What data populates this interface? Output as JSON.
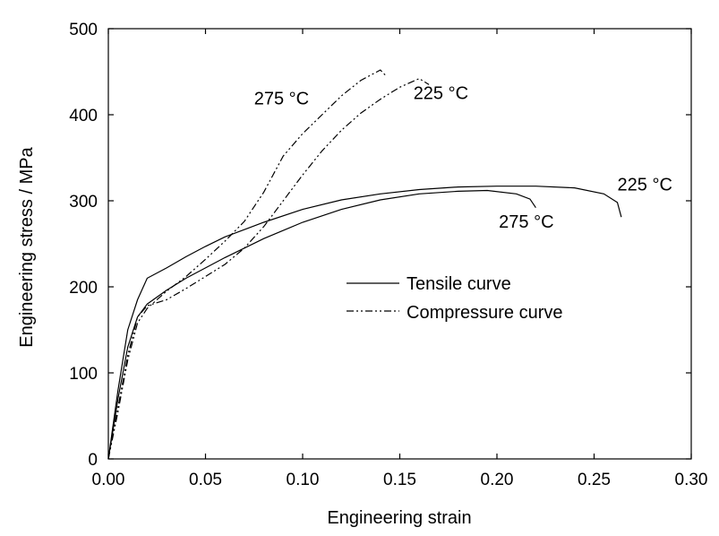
{
  "chart_data": {
    "type": "line",
    "title": "",
    "xlabel": "Engineering strain",
    "ylabel": "Engineering stress / MPa",
    "xlim": [
      0,
      0.3
    ],
    "ylim": [
      0,
      500
    ],
    "xticks": [
      "0.00",
      "0.05",
      "0.10",
      "0.15",
      "0.20",
      "0.25",
      "0.30"
    ],
    "yticks": [
      "0",
      "100",
      "200",
      "300",
      "400",
      "500"
    ],
    "grid": false,
    "legend": {
      "placement": "center-right",
      "entries": [
        {
          "label": "Tensile curve",
          "style": "solid"
        },
        {
          "label": "Compressure curve",
          "style": "dash-dot-dot"
        }
      ]
    },
    "annotations": [
      {
        "text": "275 °C",
        "x": 0.075,
        "y": 412
      },
      {
        "text": "225 °C",
        "x": 0.157,
        "y": 418
      },
      {
        "text": "225 °C",
        "x": 0.262,
        "y": 312
      },
      {
        "text": "275 °C",
        "x": 0.201,
        "y": 269
      }
    ],
    "series": [
      {
        "style": "solid",
        "x": [
          0,
          0.005,
          0.01,
          0.015,
          0.02,
          0.03,
          0.04,
          0.05,
          0.06,
          0.08,
          0.1,
          0.12,
          0.14,
          0.16,
          0.18,
          0.2,
          0.22,
          0.24,
          0.255,
          0.262,
          0.264
        ],
        "y": [
          0,
          80,
          150,
          185,
          210,
          222,
          235,
          247,
          258,
          275,
          290,
          301,
          308,
          313,
          316,
          317,
          317,
          315,
          308,
          298,
          281
        ]
      },
      {
        "style": "solid",
        "x": [
          0,
          0.005,
          0.01,
          0.015,
          0.02,
          0.03,
          0.04,
          0.05,
          0.06,
          0.08,
          0.1,
          0.12,
          0.14,
          0.16,
          0.18,
          0.195,
          0.21,
          0.217,
          0.22
        ],
        "y": [
          0,
          70,
          130,
          165,
          180,
          196,
          210,
          222,
          234,
          256,
          275,
          290,
          301,
          308,
          311,
          312,
          308,
          302,
          292
        ]
      },
      {
        "style": "dash-dot-dot",
        "x": [
          0,
          0.005,
          0.01,
          0.015,
          0.02,
          0.03,
          0.04,
          0.05,
          0.06,
          0.07,
          0.08,
          0.09,
          0.1,
          0.11,
          0.12,
          0.13,
          0.14,
          0.15,
          0.16,
          0.165
        ],
        "y": [
          0,
          60,
          120,
          165,
          178,
          185,
          198,
          212,
          226,
          245,
          270,
          300,
          330,
          358,
          382,
          402,
          418,
          432,
          442,
          435
        ]
      },
      {
        "style": "dash-dot-dot",
        "x": [
          0,
          0.005,
          0.01,
          0.015,
          0.02,
          0.03,
          0.04,
          0.05,
          0.06,
          0.07,
          0.08,
          0.09,
          0.1,
          0.11,
          0.12,
          0.13,
          0.14,
          0.143
        ],
        "y": [
          0,
          55,
          115,
          158,
          175,
          195,
          212,
          232,
          253,
          276,
          310,
          352,
          378,
          400,
          422,
          440,
          452,
          445
        ]
      }
    ]
  }
}
